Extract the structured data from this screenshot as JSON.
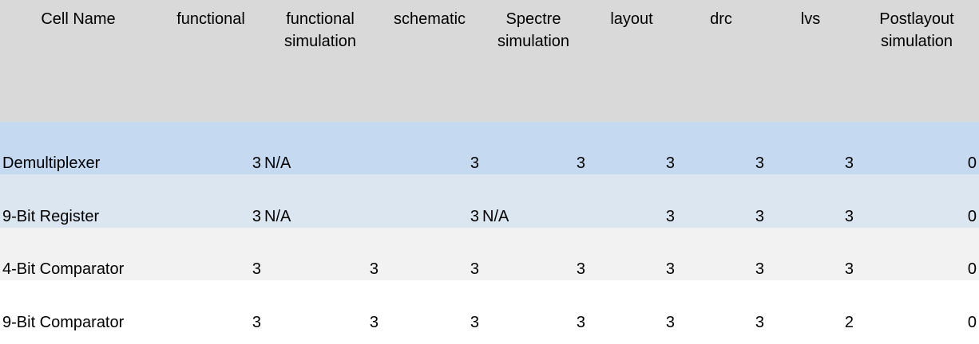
{
  "table": {
    "headers": [
      "Cell Name",
      "functional",
      "functional\nsimulation",
      "schematic",
      "Spectre\nsimulation",
      "layout",
      "drc",
      "lvs",
      "Postlayout\nsimulation"
    ],
    "rows": [
      {
        "name": "Demultiplexer",
        "functional": "3",
        "functional_simulation": "N/A",
        "schematic": "3",
        "spectre_simulation": "3",
        "layout": "3",
        "drc": "3",
        "lvs": "3",
        "postlayout_simulation": "0",
        "fill": "#c5d9f1"
      },
      {
        "name": "9-Bit Register",
        "functional": "3",
        "functional_simulation": "N/A",
        "schematic": "3",
        "spectre_simulation": "N/A",
        "layout": "3",
        "drc": "3",
        "lvs": "3",
        "postlayout_simulation": "0",
        "fill": "#dce6f1"
      },
      {
        "name": "4-Bit Comparator",
        "functional": "3",
        "functional_simulation": "3",
        "schematic": "3",
        "spectre_simulation": "3",
        "layout": "3",
        "drc": "3",
        "lvs": "3",
        "postlayout_simulation": "0",
        "fill": "#f2f2f2"
      },
      {
        "name": "9-Bit Comparator",
        "functional": "3",
        "functional_simulation": "3",
        "schematic": "3",
        "spectre_simulation": "3",
        "layout": "3",
        "drc": "3",
        "lvs": "2",
        "postlayout_simulation": "0",
        "fill": "#ffffff"
      }
    ]
  },
  "colors": {
    "header_fill": "#d9d9d9"
  }
}
